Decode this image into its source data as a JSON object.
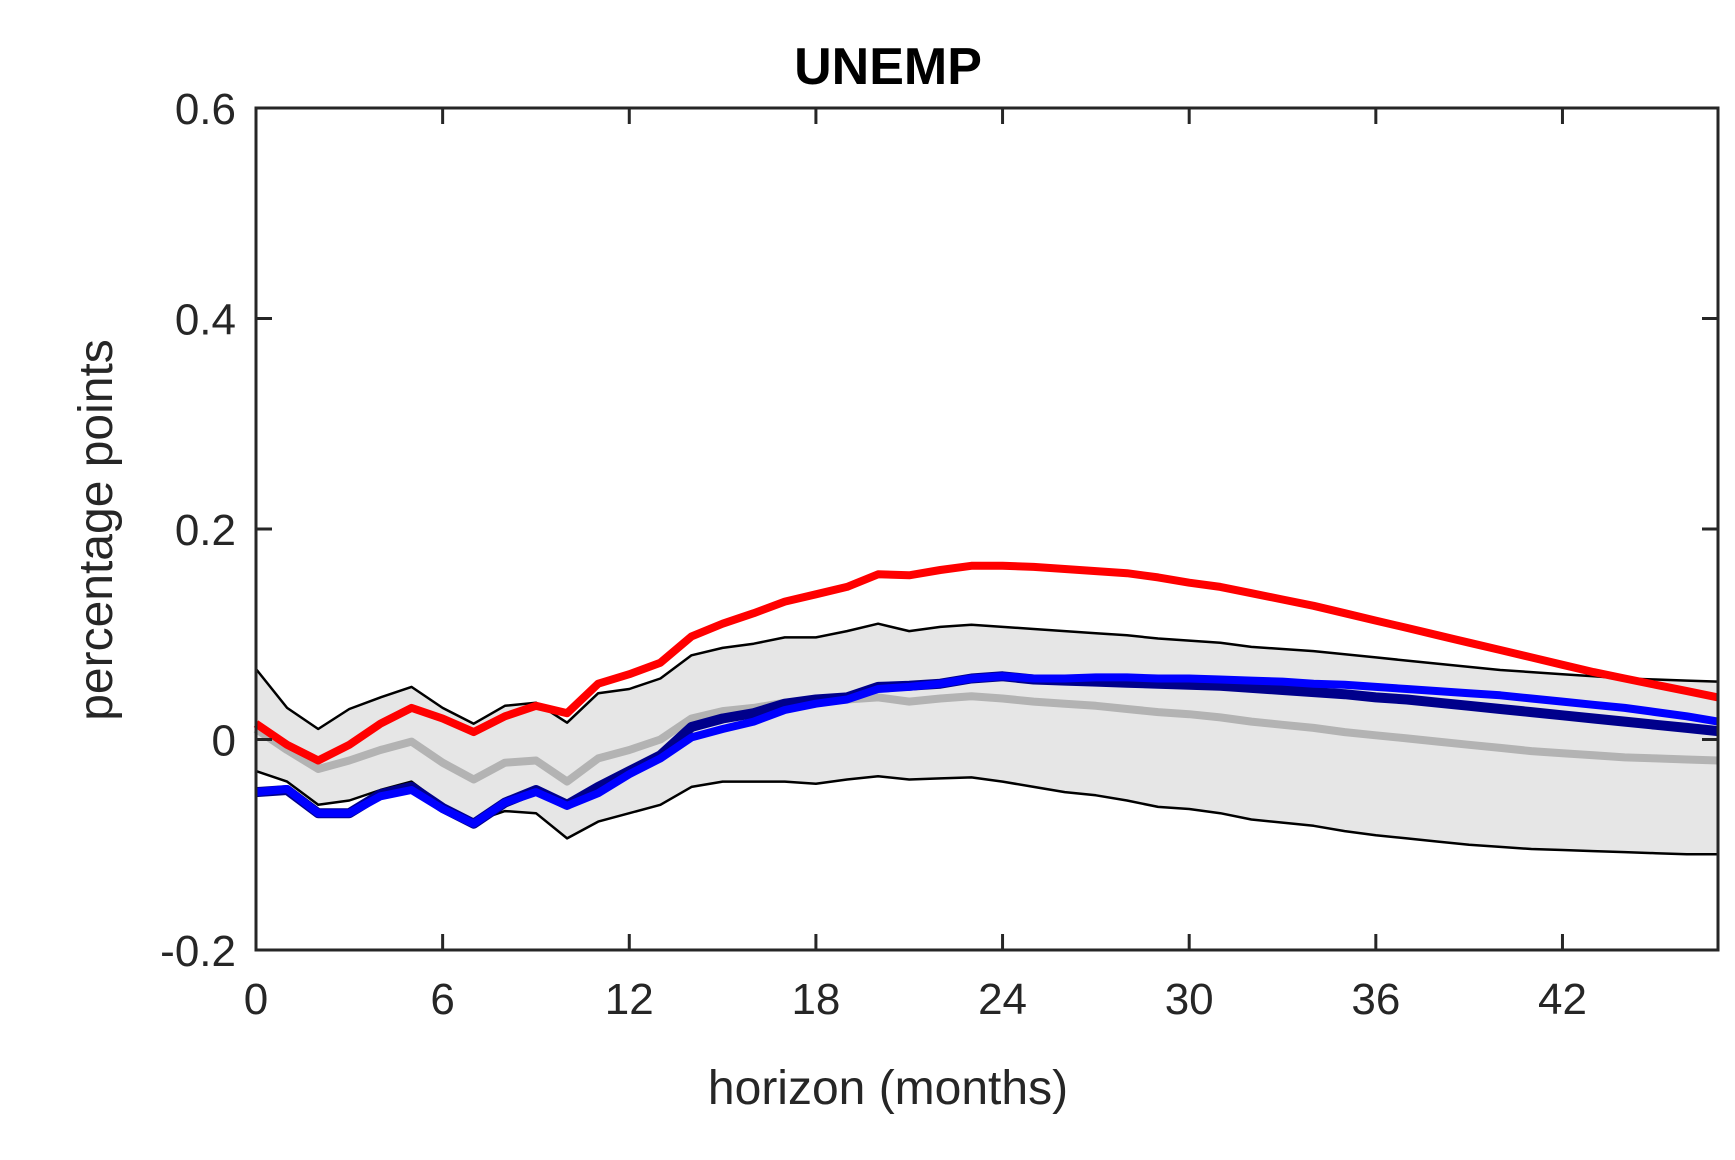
{
  "chart_data": {
    "type": "line",
    "title": "UNEMP",
    "xlabel": "horizon (months)",
    "ylabel": "percentage points",
    "xlim": [
      0,
      47
    ],
    "ylim": [
      -0.2,
      0.6
    ],
    "x_ticks": [
      0,
      6,
      12,
      18,
      24,
      30,
      36,
      42
    ],
    "x_tick_labels": [
      "0",
      "6",
      "12",
      "18",
      "24",
      "30",
      "36",
      "42"
    ],
    "y_ticks": [
      -0.2,
      0,
      0.2,
      0.4,
      0.6
    ],
    "y_tick_labels": [
      "-0.2",
      "0",
      "0.2",
      "0.4",
      "0.6"
    ],
    "grid": false,
    "colors": {
      "band_fill": "#e6e6e6",
      "band_edge": "#000000",
      "median": "#b3b3b3",
      "dark_blue": "#00008b",
      "blue": "#0000ff",
      "red": "#ff0000"
    },
    "x": [
      0,
      1,
      2,
      3,
      4,
      5,
      6,
      7,
      8,
      9,
      10,
      11,
      12,
      13,
      14,
      15,
      16,
      17,
      18,
      19,
      20,
      21,
      22,
      23,
      24,
      25,
      26,
      27,
      28,
      29,
      30,
      31,
      32,
      33,
      34,
      35,
      36,
      37,
      38,
      39,
      40,
      41,
      42,
      43,
      44,
      45,
      46,
      47
    ],
    "band_upper": [
      0.067,
      0.03,
      0.01,
      0.029,
      0.04,
      0.05,
      0.03,
      0.015,
      0.032,
      0.035,
      0.016,
      0.044,
      0.048,
      0.058,
      0.08,
      0.087,
      0.091,
      0.097,
      0.097,
      0.103,
      0.11,
      0.103,
      0.107,
      0.109,
      0.107,
      0.105,
      0.103,
      0.101,
      0.099,
      0.096,
      0.094,
      0.092,
      0.088,
      0.086,
      0.084,
      0.081,
      0.078,
      0.075,
      0.072,
      0.069,
      0.066,
      0.064,
      0.062,
      0.06,
      0.058,
      0.057,
      0.056,
      0.055
    ],
    "band_lower": [
      -0.03,
      -0.04,
      -0.062,
      -0.058,
      -0.048,
      -0.04,
      -0.062,
      -0.078,
      -0.068,
      -0.07,
      -0.094,
      -0.078,
      -0.07,
      -0.062,
      -0.045,
      -0.04,
      -0.04,
      -0.04,
      -0.042,
      -0.038,
      -0.035,
      -0.038,
      -0.037,
      -0.036,
      -0.04,
      -0.045,
      -0.05,
      -0.053,
      -0.058,
      -0.064,
      -0.066,
      -0.07,
      -0.076,
      -0.079,
      -0.082,
      -0.087,
      -0.091,
      -0.094,
      -0.097,
      -0.1,
      -0.102,
      -0.104,
      -0.105,
      -0.106,
      -0.107,
      -0.108,
      -0.109,
      -0.109
    ],
    "series": [
      {
        "color": "#b3b3b3",
        "width": 8,
        "values": [
          0.01,
          -0.01,
          -0.028,
          -0.02,
          -0.01,
          -0.002,
          -0.022,
          -0.038,
          -0.022,
          -0.02,
          -0.04,
          -0.018,
          -0.01,
          0.0,
          0.02,
          0.027,
          0.03,
          0.035,
          0.036,
          0.038,
          0.04,
          0.036,
          0.039,
          0.041,
          0.039,
          0.036,
          0.034,
          0.032,
          0.029,
          0.026,
          0.024,
          0.021,
          0.017,
          0.014,
          0.011,
          0.007,
          0.004,
          0.001,
          -0.002,
          -0.005,
          -0.008,
          -0.011,
          -0.013,
          -0.015,
          -0.017,
          -0.018,
          -0.019,
          -0.02
        ]
      },
      {
        "color": "#00008b",
        "width": 10,
        "values": [
          -0.05,
          -0.048,
          -0.07,
          -0.07,
          -0.052,
          -0.045,
          -0.065,
          -0.08,
          -0.06,
          -0.048,
          -0.062,
          -0.045,
          -0.03,
          -0.015,
          0.012,
          0.02,
          0.025,
          0.034,
          0.038,
          0.04,
          0.05,
          0.051,
          0.053,
          0.058,
          0.06,
          0.057,
          0.056,
          0.055,
          0.054,
          0.053,
          0.052,
          0.051,
          0.049,
          0.047,
          0.045,
          0.043,
          0.04,
          0.038,
          0.035,
          0.032,
          0.029,
          0.026,
          0.023,
          0.02,
          0.017,
          0.014,
          0.011,
          0.008
        ]
      },
      {
        "color": "#0000ff",
        "width": 8,
        "values": [
          -0.05,
          -0.047,
          -0.07,
          -0.07,
          -0.054,
          -0.048,
          -0.066,
          -0.08,
          -0.06,
          -0.05,
          -0.063,
          -0.051,
          -0.033,
          -0.018,
          0.002,
          0.01,
          0.017,
          0.028,
          0.034,
          0.038,
          0.048,
          0.05,
          0.053,
          0.058,
          0.06,
          0.058,
          0.058,
          0.059,
          0.059,
          0.058,
          0.058,
          0.057,
          0.056,
          0.055,
          0.053,
          0.052,
          0.05,
          0.048,
          0.046,
          0.044,
          0.042,
          0.039,
          0.036,
          0.033,
          0.03,
          0.026,
          0.022,
          0.017
        ]
      },
      {
        "color": "#ff0000",
        "width": 8,
        "values": [
          0.015,
          -0.005,
          -0.02,
          -0.005,
          0.015,
          0.03,
          0.02,
          0.007,
          0.022,
          0.032,
          0.025,
          0.053,
          0.062,
          0.073,
          0.098,
          0.11,
          0.12,
          0.131,
          0.138,
          0.145,
          0.157,
          0.156,
          0.161,
          0.165,
          0.165,
          0.164,
          0.162,
          0.16,
          0.158,
          0.154,
          0.149,
          0.145,
          0.139,
          0.133,
          0.127,
          0.12,
          0.113,
          0.106,
          0.099,
          0.092,
          0.085,
          0.078,
          0.071,
          0.064,
          0.058,
          0.052,
          0.046,
          0.04
        ]
      }
    ]
  }
}
